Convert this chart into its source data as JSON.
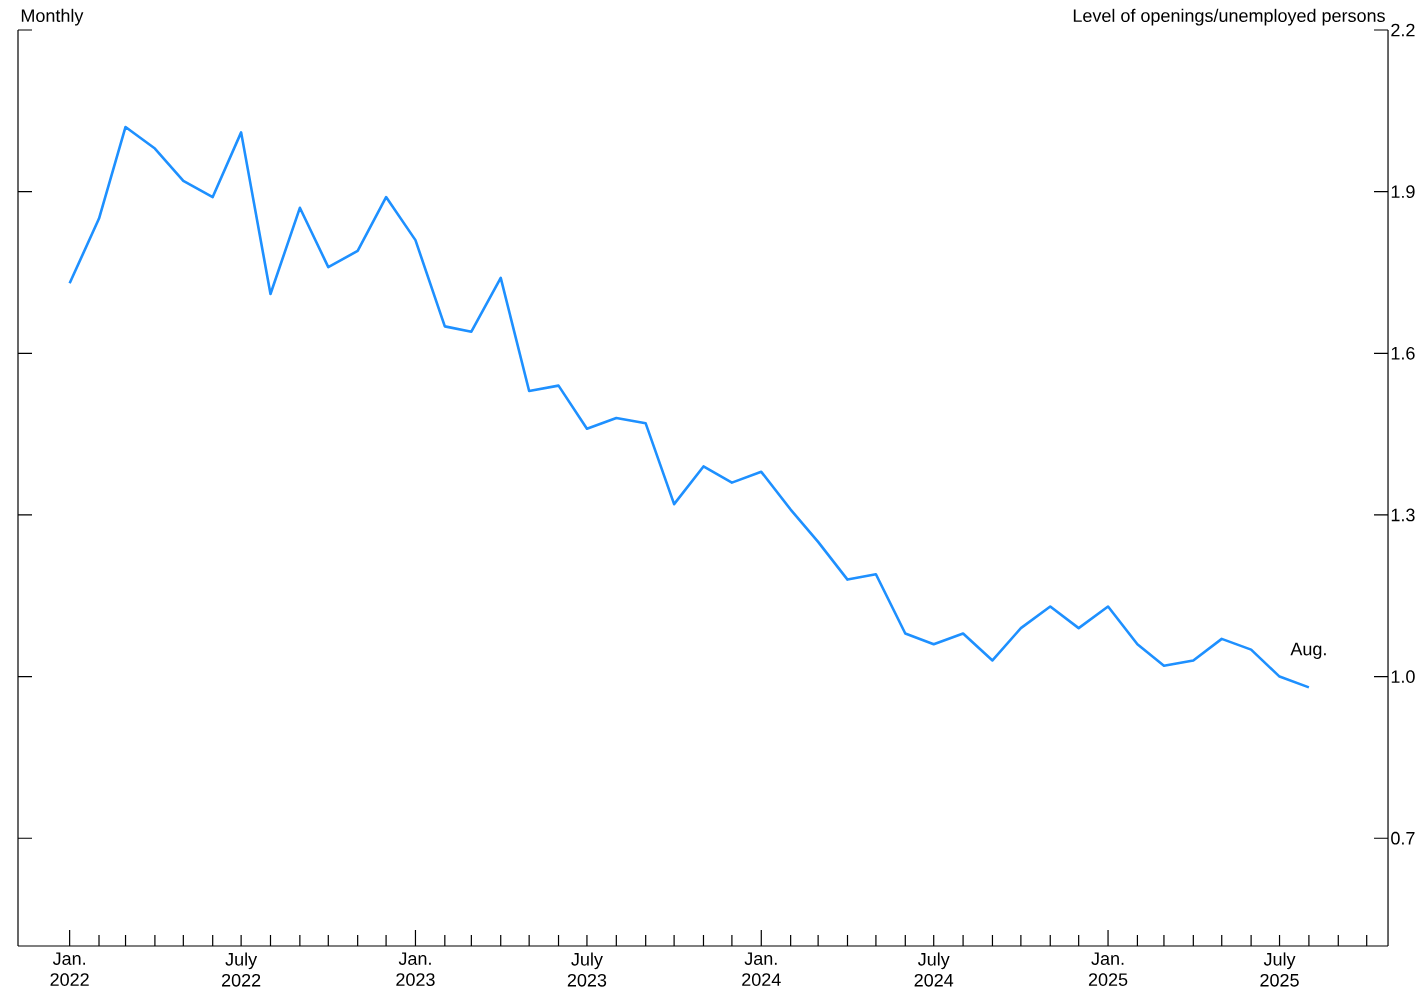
{
  "chart_data": {
    "type": "line",
    "subtitle": "Monthly",
    "ylabel": "Level of openings/unemployed persons",
    "x": [
      "2022-01",
      "2022-02",
      "2022-03",
      "2022-04",
      "2022-05",
      "2022-06",
      "2022-07",
      "2022-08",
      "2022-09",
      "2022-10",
      "2022-11",
      "2022-12",
      "2023-01",
      "2023-02",
      "2023-03",
      "2023-04",
      "2023-05",
      "2023-06",
      "2023-07",
      "2023-08",
      "2023-09",
      "2023-10",
      "2023-11",
      "2023-12",
      "2024-01",
      "2024-02",
      "2024-03",
      "2024-04",
      "2024-05",
      "2024-06",
      "2024-07",
      "2024-08",
      "2024-09",
      "2024-10",
      "2024-11",
      "2024-12",
      "2025-01",
      "2025-02",
      "2025-03",
      "2025-04",
      "2025-05",
      "2025-06",
      "2025-07",
      "2025-08"
    ],
    "series": [
      {
        "color": "#1e90ff",
        "values": [
          1.73,
          1.85,
          2.02,
          1.98,
          1.92,
          1.89,
          2.01,
          1.71,
          1.87,
          1.76,
          1.79,
          1.89,
          1.81,
          1.65,
          1.64,
          1.74,
          1.53,
          1.54,
          1.46,
          1.48,
          1.47,
          1.32,
          1.39,
          1.36,
          1.38,
          1.31,
          1.25,
          1.18,
          1.19,
          1.08,
          1.06,
          1.08,
          1.03,
          1.09,
          1.13,
          1.09,
          1.13,
          1.06,
          1.02,
          1.03,
          1.07,
          1.05,
          1.0,
          0.98
        ]
      }
    ],
    "annotations": [
      {
        "text": "Aug.",
        "x": "2025-08",
        "y": 0.98
      }
    ],
    "xlim": [
      "2021-11-08",
      "2025-10-24"
    ],
    "ylim": [
      0.5,
      2.2
    ],
    "yticks": [
      0.7,
      {
        "value": 1.0,
        "label": "1.0"
      },
      1.3,
      1.6,
      1.9,
      2.2
    ],
    "xticks": [
      {
        "value": "2022-01",
        "label": "Jan. 2022"
      },
      {
        "value": "2022-02",
        "label": null
      },
      {
        "value": "2022-03",
        "label": null
      },
      {
        "value": "2022-04",
        "label": null
      },
      {
        "value": "2022-05",
        "label": null
      },
      {
        "value": "2022-06",
        "label": null
      },
      {
        "value": "2022-07",
        "label": "July 2022"
      },
      {
        "value": "2022-08",
        "label": null
      },
      {
        "value": "2022-09",
        "label": null
      },
      {
        "value": "2022-10",
        "label": null
      },
      {
        "value": "2022-11",
        "label": null
      },
      {
        "value": "2022-12",
        "label": null
      },
      {
        "value": "2023-01",
        "label": "Jan. 2023"
      },
      {
        "value": "2023-02",
        "label": null
      },
      {
        "value": "2023-03",
        "label": null
      },
      {
        "value": "2023-04",
        "label": null
      },
      {
        "value": "2023-05",
        "label": null
      },
      {
        "value": "2023-06",
        "label": null
      },
      {
        "value": "2023-07",
        "label": "July 2023"
      },
      {
        "value": "2023-08",
        "label": null
      },
      {
        "value": "2023-09",
        "label": null
      },
      {
        "value": "2023-10",
        "label": null
      },
      {
        "value": "2023-11",
        "label": null
      },
      {
        "value": "2023-12",
        "label": null
      },
      {
        "value": "2024-01",
        "label": "Jan. 2024"
      },
      {
        "value": "2024-02",
        "label": null
      },
      {
        "value": "2024-03",
        "label": null
      },
      {
        "value": "2024-04",
        "label": null
      },
      {
        "value": "2024-05",
        "label": null
      },
      {
        "value": "2024-06",
        "label": null
      },
      {
        "value": "2024-07",
        "label": "July 2024"
      },
      {
        "value": "2024-08",
        "label": null
      },
      {
        "value": "2024-09",
        "label": null
      },
      {
        "value": "2024-10",
        "label": null
      },
      {
        "value": "2024-11",
        "label": null
      },
      {
        "value": "2024-12",
        "label": null
      },
      {
        "value": "2025-01",
        "label": "Jan. 2025"
      },
      {
        "value": "2025-02",
        "label": null
      },
      {
        "value": "2025-03",
        "label": null
      },
      {
        "value": "2025-04",
        "label": null
      },
      {
        "value": "2025-05",
        "label": null
      },
      {
        "value": "2025-06",
        "label": null
      },
      {
        "value": "2025-07",
        "label": "July 2025"
      },
      {
        "value": "2025-08",
        "label": null
      },
      {
        "value": "2025-09",
        "label": null
      },
      {
        "value": "2025-10",
        "label": null
      }
    ],
    "grid": false,
    "marker": "none",
    "line_style": "solid"
  }
}
